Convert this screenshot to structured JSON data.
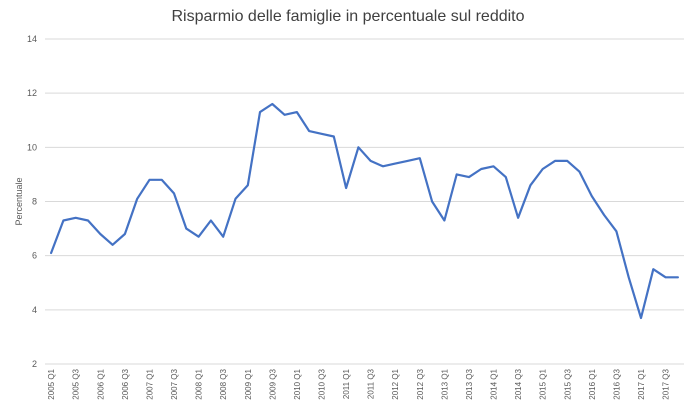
{
  "chart_data": {
    "type": "line",
    "title": "Risparmio delle famiglie in percentuale sul reddito",
    "xlabel": "",
    "ylabel": "Percentuale",
    "ylim": [
      2,
      14
    ],
    "yticks": [
      2,
      4,
      6,
      8,
      10,
      12,
      14
    ],
    "grid": true,
    "legend": "none",
    "x": [
      "2005 Q1",
      "2005 Q2",
      "2005 Q3",
      "2005 Q4",
      "2006 Q1",
      "2006 Q2",
      "2006 Q3",
      "2006 Q4",
      "2007 Q1",
      "2007 Q2",
      "2007 Q3",
      "2007 Q4",
      "2008 Q1",
      "2008 Q2",
      "2008 Q3",
      "2008 Q4",
      "2009 Q1",
      "2009 Q2",
      "2009 Q3",
      "2009 Q4",
      "2010 Q1",
      "2010 Q2",
      "2010 Q3",
      "2010 Q4",
      "2011 Q1",
      "2011 Q2",
      "2011 Q3",
      "2011 Q4",
      "2012 Q1",
      "2012 Q2",
      "2012 Q3",
      "2012 Q4",
      "2013 Q1",
      "2013 Q2",
      "2013 Q3",
      "2013 Q4",
      "2014 Q1",
      "2014 Q2",
      "2014 Q3",
      "2014 Q4",
      "2015 Q1",
      "2015 Q2",
      "2015 Q3",
      "2015 Q4",
      "2016 Q1",
      "2016 Q2",
      "2016 Q3",
      "2016 Q4",
      "2017 Q1",
      "2017 Q2",
      "2017 Q3",
      "2017 Q4"
    ],
    "xtick_labels": [
      "2005 Q1",
      "",
      "2005 Q3",
      "",
      "2006 Q1",
      "",
      "2006 Q3",
      "",
      "2007 Q1",
      "",
      "2007 Q3",
      "",
      "2008 Q1",
      "",
      "2008 Q3",
      "",
      "2009 Q1",
      "",
      "2009 Q3",
      "",
      "2010 Q1",
      "",
      "2010 Q3",
      "",
      "2011 Q1",
      "",
      "2011 Q3",
      "",
      "2012 Q1",
      "",
      "2012 Q3",
      "",
      "2013 Q1",
      "",
      "2013 Q3",
      "",
      "2014 Q1",
      "",
      "2014 Q3",
      "",
      "2015 Q1",
      "",
      "2015 Q3",
      "",
      "2016 Q1",
      "",
      "2016 Q3",
      "",
      "2017 Q1",
      "",
      "2017 Q3",
      ""
    ],
    "series": [
      {
        "values": [
          6.1,
          7.3,
          7.4,
          7.3,
          6.8,
          6.4,
          6.8,
          8.1,
          8.8,
          8.8,
          8.3,
          7.0,
          6.7,
          7.3,
          6.7,
          8.1,
          8.6,
          11.3,
          11.6,
          11.2,
          11.3,
          10.6,
          10.5,
          10.4,
          8.5,
          10.0,
          9.5,
          9.3,
          9.4,
          9.5,
          9.6,
          8.0,
          7.3,
          9.0,
          8.9,
          9.2,
          9.3,
          8.9,
          7.4,
          8.6,
          9.2,
          9.5,
          9.5,
          9.1,
          8.2,
          7.5,
          6.9,
          5.2,
          3.7,
          5.5,
          5.2,
          5.2
        ]
      }
    ],
    "colors": {
      "line": "#4472c4",
      "grid": "#d9d9d9",
      "text": "#595959",
      "title": "#404040"
    }
  }
}
